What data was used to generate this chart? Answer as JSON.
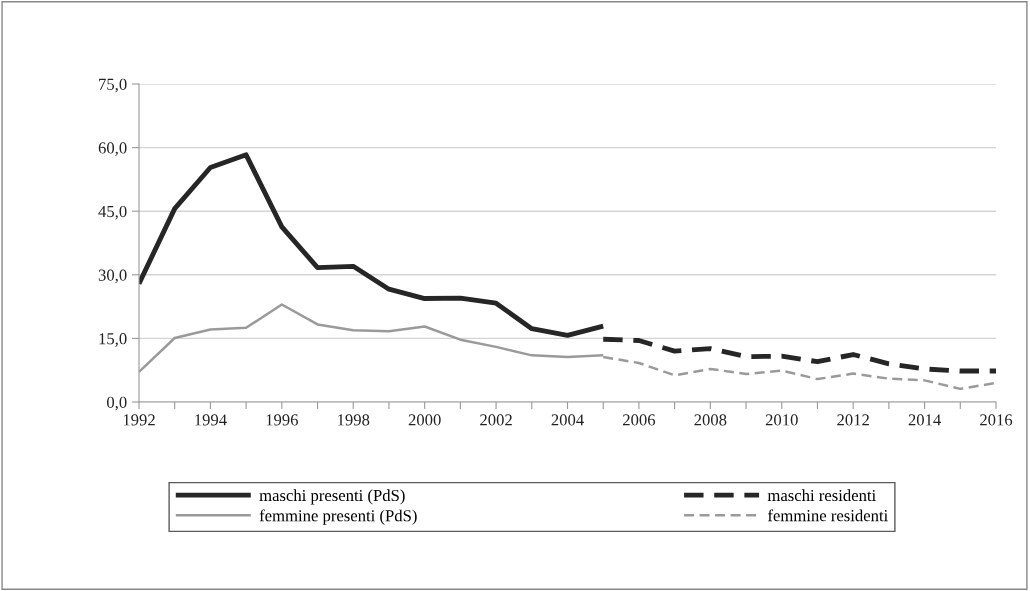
{
  "chart_data": {
    "type": "line",
    "x": [
      1992,
      1993,
      1994,
      1995,
      1996,
      1997,
      1998,
      1999,
      2000,
      2001,
      2002,
      2003,
      2004,
      2005,
      2006,
      2007,
      2008,
      2009,
      2010,
      2011,
      2012,
      2013,
      2014,
      2015,
      2016
    ],
    "series": [
      {
        "name": "maschi presenti (PdS)",
        "color": "#262626",
        "line_style": "solid",
        "values": [
          27.9,
          45.6,
          55.3,
          58.3,
          41.3,
          31.7,
          32.0,
          26.6,
          24.4,
          24.5,
          23.3,
          17.3,
          15.7,
          17.9,
          null,
          null,
          null,
          null,
          null,
          null,
          null,
          null,
          null,
          null,
          null
        ]
      },
      {
        "name": "maschi residenti",
        "color": "#262626",
        "line_style": "dashed",
        "values": [
          null,
          null,
          null,
          null,
          null,
          null,
          null,
          null,
          null,
          null,
          null,
          null,
          null,
          14.8,
          14.5,
          12.0,
          12.6,
          10.7,
          10.8,
          9.5,
          11.2,
          9.0,
          7.8,
          7.3,
          7.3
        ]
      },
      {
        "name": "femmine presenti (PdS)",
        "color": "#9a9a9a",
        "line_style": "solid",
        "values": [
          7.1,
          15.1,
          17.1,
          17.5,
          23.0,
          18.3,
          16.9,
          16.7,
          17.8,
          14.7,
          13.0,
          11.0,
          10.6,
          11.0,
          null,
          null,
          null,
          null,
          null,
          null,
          null,
          null,
          null,
          null,
          null
        ]
      },
      {
        "name": "femmine residenti",
        "color": "#9a9a9a",
        "line_style": "dashed",
        "values": [
          null,
          null,
          null,
          null,
          null,
          null,
          null,
          null,
          null,
          null,
          null,
          null,
          null,
          10.6,
          9.2,
          6.3,
          7.8,
          6.6,
          7.4,
          5.4,
          6.7,
          5.5,
          5.1,
          3.1,
          4.5
        ]
      }
    ],
    "xlim": [
      1992,
      2016
    ],
    "xticks": [
      1992,
      {
        "value": 1993,
        "label": null
      },
      1994,
      {
        "value": 1995,
        "label": null
      },
      1996,
      {
        "value": 1997,
        "label": null
      },
      1998,
      {
        "value": 1999,
        "label": null
      },
      2000,
      {
        "value": 2001,
        "label": null
      },
      2002,
      {
        "value": 2003,
        "label": null
      },
      2004,
      {
        "value": 2005,
        "label": null
      },
      2006,
      {
        "value": 2007,
        "label": null
      },
      2008,
      {
        "value": 2009,
        "label": null
      },
      2010,
      {
        "value": 2011,
        "label": null
      },
      2012,
      {
        "value": 2013,
        "label": null
      },
      2014,
      {
        "value": 2015,
        "label": null
      },
      2016
    ],
    "ylim": [
      0,
      75
    ],
    "yticks": [
      {
        "value": 0,
        "label": "0,0"
      },
      {
        "value": 15,
        "label": "15,0"
      },
      {
        "value": 30,
        "label": "30,0"
      },
      {
        "value": 45,
        "label": "45,0"
      },
      {
        "value": 60,
        "label": "60,0"
      },
      {
        "value": 75,
        "label": "75,0"
      }
    ],
    "grid": "y",
    "legend": "bottom",
    "marker": "none"
  }
}
